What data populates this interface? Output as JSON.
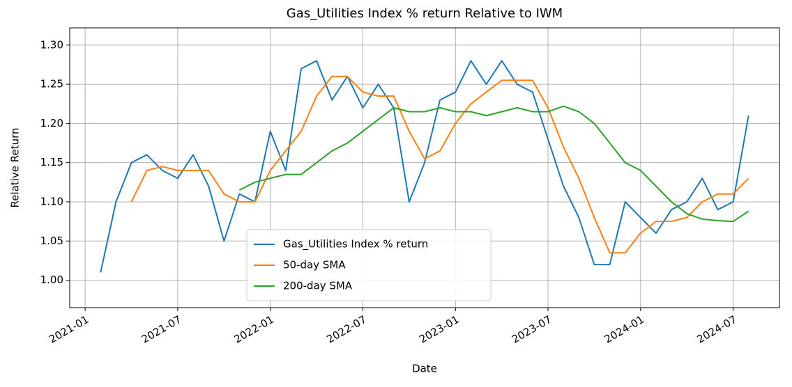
{
  "chart_data": {
    "type": "line",
    "title": "Gas_Utilities Index % return Relative to IWM",
    "xlabel": "Date",
    "ylabel": "Relative Return",
    "x": [
      "2021-02",
      "2021-03",
      "2021-04",
      "2021-05",
      "2021-06",
      "2021-07",
      "2021-08",
      "2021-09",
      "2021-10",
      "2021-11",
      "2021-12",
      "2022-01",
      "2022-02",
      "2022-03",
      "2022-04",
      "2022-05",
      "2022-06",
      "2022-07",
      "2022-08",
      "2022-09",
      "2022-10",
      "2022-11",
      "2022-12",
      "2023-01",
      "2023-02",
      "2023-03",
      "2023-04",
      "2023-05",
      "2023-06",
      "2023-07",
      "2023-08",
      "2023-09",
      "2023-10",
      "2023-11",
      "2023-12",
      "2024-01",
      "2024-02",
      "2024-03",
      "2024-04",
      "2024-05",
      "2024-06",
      "2024-07",
      "2024-08"
    ],
    "series": [
      {
        "name": "Gas_Utilities Index % return",
        "color": "#1f77b4",
        "values": [
          1.01,
          1.1,
          1.15,
          1.16,
          1.14,
          1.13,
          1.16,
          1.12,
          1.05,
          1.11,
          1.1,
          1.19,
          1.14,
          1.27,
          1.28,
          1.23,
          1.26,
          1.22,
          1.25,
          1.22,
          1.1,
          1.15,
          1.23,
          1.24,
          1.28,
          1.25,
          1.28,
          1.25,
          1.24,
          1.18,
          1.12,
          1.08,
          1.02,
          1.02,
          1.1,
          1.08,
          1.06,
          1.09,
          1.1,
          1.13,
          1.09,
          1.1,
          1.21
        ]
      },
      {
        "name": "50-day SMA",
        "color": "#ff7f0e",
        "values": [
          null,
          null,
          1.1,
          1.14,
          1.145,
          1.14,
          1.14,
          1.14,
          1.11,
          1.1,
          1.1,
          1.14,
          1.165,
          1.19,
          1.235,
          1.26,
          1.26,
          1.24,
          1.235,
          1.235,
          1.19,
          1.155,
          1.165,
          1.2,
          1.225,
          1.24,
          1.255,
          1.255,
          1.255,
          1.22,
          1.17,
          1.13,
          1.08,
          1.035,
          1.035,
          1.06,
          1.075,
          1.075,
          1.08,
          1.1,
          1.11,
          1.11,
          1.13
        ]
      },
      {
        "name": "200-day SMA",
        "color": "#2ca02c",
        "values": [
          null,
          null,
          null,
          null,
          null,
          null,
          null,
          null,
          null,
          1.115,
          1.125,
          1.13,
          1.135,
          1.135,
          1.15,
          1.165,
          1.175,
          1.19,
          1.205,
          1.22,
          1.215,
          1.215,
          1.22,
          1.215,
          1.215,
          1.21,
          1.215,
          1.22,
          1.215,
          1.215,
          1.222,
          1.215,
          1.2,
          1.175,
          1.15,
          1.14,
          1.12,
          1.1,
          1.085,
          1.078,
          1.076,
          1.075,
          1.088
        ]
      }
    ],
    "xlim": [
      "2020-12",
      "2024-10"
    ],
    "xticks": [
      "2021-01",
      "2021-07",
      "2022-01",
      "2022-07",
      "2023-01",
      "2023-07",
      "2024-01",
      "2024-07"
    ],
    "ylim": [
      0.965,
      1.322
    ],
    "yticks": [
      {
        "value": 1.0,
        "label": "1.00"
      },
      1.05,
      {
        "value": 1.1,
        "label": "1.10"
      },
      1.15,
      {
        "value": 1.2,
        "label": "1.20"
      },
      1.25,
      {
        "value": 1.3,
        "label": "1.30"
      }
    ],
    "grid": true,
    "legend": "lower center"
  }
}
